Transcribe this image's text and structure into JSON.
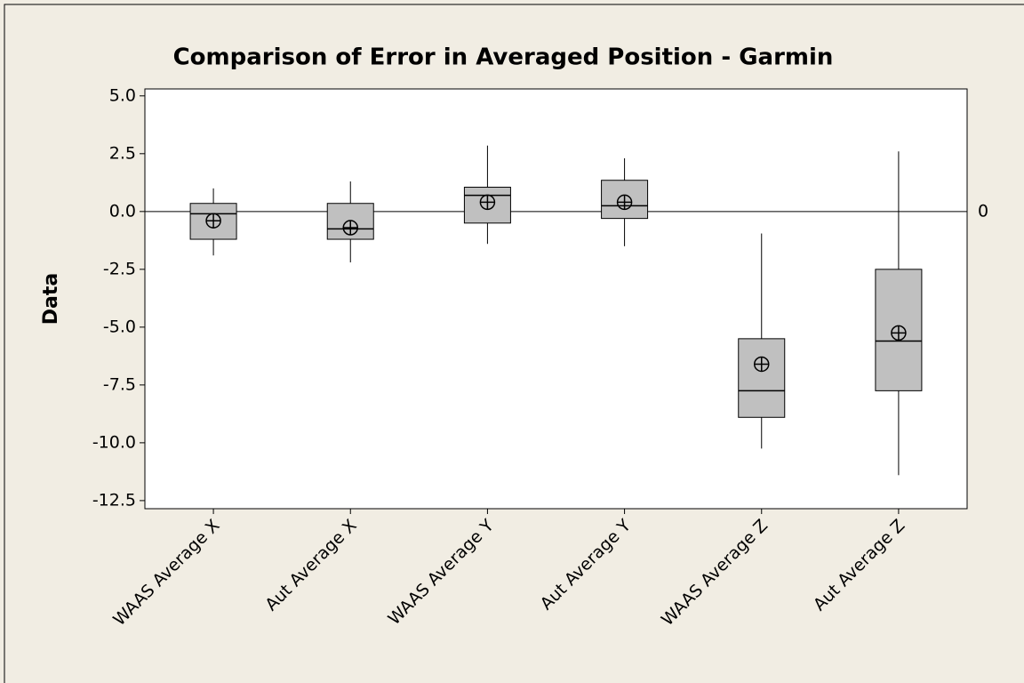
{
  "chart_data": {
    "type": "box",
    "title": "Comparison of Error in Averaged Position - Garmin",
    "y_label": "Data",
    "categories": [
      "WAAS Average X",
      "Aut Average X",
      "WAAS Average Y",
      "Aut Average Y",
      "WAAS Average Z",
      "Aut Average Z"
    ],
    "boxes": [
      {
        "low": -1.9,
        "q1": -1.2,
        "median": -0.1,
        "q3": 0.35,
        "high": 1.0,
        "mean": -0.4
      },
      {
        "low": -2.2,
        "q1": -1.2,
        "median": -0.75,
        "q3": 0.35,
        "high": 1.3,
        "mean": -0.7
      },
      {
        "low": -1.4,
        "q1": -0.5,
        "median": 0.7,
        "q3": 1.05,
        "high": 2.85,
        "mean": 0.4
      },
      {
        "low": -1.5,
        "q1": -0.3,
        "median": 0.25,
        "q3": 1.35,
        "high": 2.3,
        "mean": 0.4
      },
      {
        "low": -10.25,
        "q1": -8.9,
        "median": -7.75,
        "q3": -5.5,
        "high": -0.95,
        "mean": -6.6
      },
      {
        "low": -11.4,
        "q1": -7.75,
        "median": -5.6,
        "q3": -2.5,
        "high": 2.6,
        "mean": -5.25
      }
    ],
    "color": "#c0c0c0",
    "reference_line": 0,
    "ylim": [
      -12.85,
      5.3
    ],
    "yticks": [
      {
        "value": 5,
        "label": "5.0"
      },
      2.5,
      {
        "value": 0,
        "label": "0.0"
      },
      -2.5,
      {
        "value": -5,
        "label": "-5.0"
      },
      -7.5,
      {
        "value": -10,
        "label": "-10.0"
      },
      -12.5
    ]
  }
}
